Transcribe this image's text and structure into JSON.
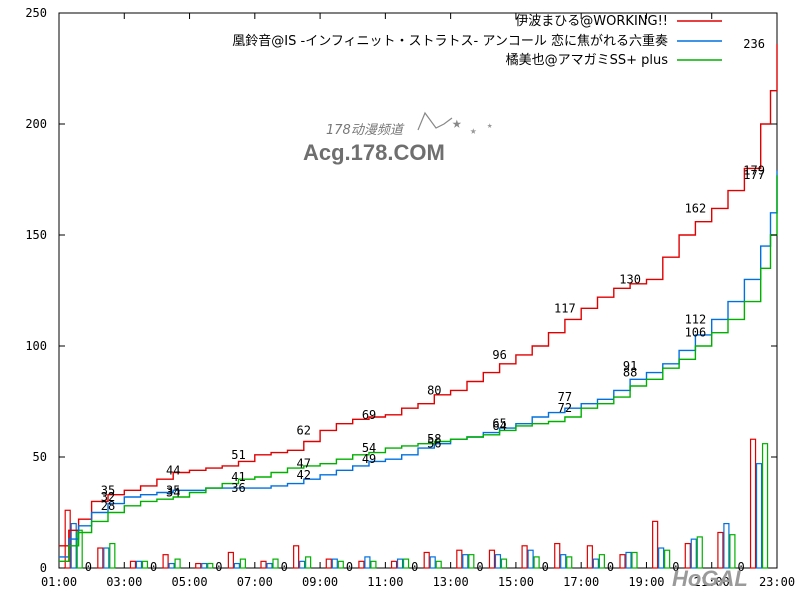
{
  "chart_data": {
    "type": "line",
    "x_ticks": [
      "01:00",
      "03:00",
      "05:00",
      "07:00",
      "09:00",
      "11:00",
      "13:00",
      "15:00",
      "17:00",
      "19:00",
      "21:00",
      "23:00"
    ],
    "y_ticks": [
      "0",
      "50",
      "100",
      "150",
      "200",
      "250"
    ],
    "xlim": [
      1,
      23
    ],
    "ylim": [
      0,
      250
    ],
    "legend_position": "top-right",
    "series": [
      {
        "name": "伊波まひる@WORKING!!",
        "color": "#e00000",
        "points": [
          [
            1,
            10
          ],
          [
            1.3,
            17
          ],
          [
            1.6,
            22
          ],
          [
            2,
            30
          ],
          [
            2.5,
            33
          ],
          [
            3,
            35
          ],
          [
            3.5,
            37
          ],
          [
            4,
            40
          ],
          [
            4.5,
            43
          ],
          [
            5,
            44
          ],
          [
            5.5,
            45
          ],
          [
            6,
            46
          ],
          [
            6.5,
            48
          ],
          [
            7,
            51
          ],
          [
            7.5,
            52
          ],
          [
            8,
            53
          ],
          [
            8.5,
            57
          ],
          [
            9,
            62
          ],
          [
            9.5,
            65
          ],
          [
            10,
            67
          ],
          [
            10.5,
            68
          ],
          [
            11,
            69
          ],
          [
            11.5,
            72
          ],
          [
            12,
            74
          ],
          [
            12.5,
            78
          ],
          [
            13,
            80
          ],
          [
            13.5,
            84
          ],
          [
            14,
            88
          ],
          [
            14.5,
            92
          ],
          [
            15,
            96
          ],
          [
            15.5,
            100
          ],
          [
            16,
            106
          ],
          [
            16.5,
            112
          ],
          [
            17,
            117
          ],
          [
            17.5,
            122
          ],
          [
            18,
            126
          ],
          [
            18.5,
            128
          ],
          [
            19,
            130
          ],
          [
            19.5,
            140
          ],
          [
            20,
            150
          ],
          [
            20.5,
            156
          ],
          [
            21,
            162
          ],
          [
            21.5,
            170
          ],
          [
            22,
            180
          ],
          [
            22.5,
            200
          ],
          [
            22.8,
            215
          ],
          [
            23,
            236
          ]
        ]
      },
      {
        "name": "凰鈴音@IS -インフィニット・ストラトス- アンコール 恋に焦がれる六重奏",
        "color": "#0070e0",
        "points": [
          [
            1,
            5
          ],
          [
            1.3,
            13
          ],
          [
            1.6,
            19
          ],
          [
            2,
            25
          ],
          [
            2.5,
            29
          ],
          [
            3,
            32
          ],
          [
            3.5,
            33
          ],
          [
            4,
            34
          ],
          [
            4.5,
            35
          ],
          [
            5,
            35
          ],
          [
            5.5,
            36
          ],
          [
            6,
            36
          ],
          [
            6.5,
            36
          ],
          [
            7,
            36
          ],
          [
            7.5,
            37
          ],
          [
            8,
            38
          ],
          [
            8.5,
            40
          ],
          [
            9,
            42
          ],
          [
            9.5,
            44
          ],
          [
            10,
            46
          ],
          [
            10.5,
            48
          ],
          [
            11,
            49
          ],
          [
            11.5,
            51
          ],
          [
            12,
            54
          ],
          [
            12.5,
            56
          ],
          [
            13,
            58
          ],
          [
            13.5,
            59
          ],
          [
            14,
            61
          ],
          [
            14.5,
            63
          ],
          [
            15,
            65
          ],
          [
            15.5,
            68
          ],
          [
            16,
            70
          ],
          [
            16.5,
            72
          ],
          [
            17,
            74
          ],
          [
            17.5,
            76
          ],
          [
            18,
            80
          ],
          [
            18.5,
            85
          ],
          [
            19,
            88
          ],
          [
            19.5,
            92
          ],
          [
            20,
            98
          ],
          [
            20.5,
            105
          ],
          [
            21,
            112
          ],
          [
            21.5,
            120
          ],
          [
            22,
            130
          ],
          [
            22.5,
            145
          ],
          [
            22.8,
            160
          ],
          [
            23,
            179
          ]
        ]
      },
      {
        "name": "橘美也@アマガミSS+ plus",
        "color": "#00b000",
        "points": [
          [
            1,
            3
          ],
          [
            1.3,
            10
          ],
          [
            1.6,
            16
          ],
          [
            2,
            21
          ],
          [
            2.5,
            25
          ],
          [
            3,
            28
          ],
          [
            3.5,
            30
          ],
          [
            4,
            31
          ],
          [
            4.5,
            32
          ],
          [
            5,
            34
          ],
          [
            5.5,
            36
          ],
          [
            6,
            38
          ],
          [
            6.5,
            40
          ],
          [
            7,
            41
          ],
          [
            7.5,
            43
          ],
          [
            8,
            45
          ],
          [
            8.5,
            46
          ],
          [
            9,
            47
          ],
          [
            9.5,
            49
          ],
          [
            10,
            51
          ],
          [
            10.5,
            52
          ],
          [
            11,
            54
          ],
          [
            11.5,
            55
          ],
          [
            12,
            56
          ],
          [
            12.5,
            57
          ],
          [
            13,
            58
          ],
          [
            13.5,
            59
          ],
          [
            14,
            60
          ],
          [
            14.5,
            62
          ],
          [
            15,
            64
          ],
          [
            15.5,
            65
          ],
          [
            16,
            66
          ],
          [
            16.5,
            68
          ],
          [
            17,
            72
          ],
          [
            17.5,
            74
          ],
          [
            18,
            77
          ],
          [
            18.5,
            82
          ],
          [
            19,
            85
          ],
          [
            19.5,
            90
          ],
          [
            20,
            94
          ],
          [
            20.5,
            100
          ],
          [
            21,
            106
          ],
          [
            21.5,
            112
          ],
          [
            22,
            120
          ],
          [
            22.5,
            135
          ],
          [
            22.8,
            150
          ],
          [
            23,
            177
          ]
        ]
      }
    ],
    "data_labels": [
      {
        "x": 2.5,
        "y": 35,
        "text": "35"
      },
      {
        "x": 2.5,
        "y": 32,
        "text": "32"
      },
      {
        "x": 2.5,
        "y": 28,
        "text": "28"
      },
      {
        "x": 4.5,
        "y": 44,
        "text": "44"
      },
      {
        "x": 4.5,
        "y": 35,
        "text": "35"
      },
      {
        "x": 4.5,
        "y": 34,
        "text": "34"
      },
      {
        "x": 6.5,
        "y": 51,
        "text": "51"
      },
      {
        "x": 6.5,
        "y": 41,
        "text": "41"
      },
      {
        "x": 6.5,
        "y": 36,
        "text": "36"
      },
      {
        "x": 8.5,
        "y": 62,
        "text": "62"
      },
      {
        "x": 8.5,
        "y": 47,
        "text": "47"
      },
      {
        "x": 8.5,
        "y": 42,
        "text": "42"
      },
      {
        "x": 10.5,
        "y": 69,
        "text": "69"
      },
      {
        "x": 10.5,
        "y": 54,
        "text": "54"
      },
      {
        "x": 10.5,
        "y": 49,
        "text": "49"
      },
      {
        "x": 12.5,
        "y": 80,
        "text": "80"
      },
      {
        "x": 12.5,
        "y": 58,
        "text": "58"
      },
      {
        "x": 12.5,
        "y": 56,
        "text": "56"
      },
      {
        "x": 14.5,
        "y": 96,
        "text": "96"
      },
      {
        "x": 14.5,
        "y": 65,
        "text": "65"
      },
      {
        "x": 14.5,
        "y": 64,
        "text": "64"
      },
      {
        "x": 16.5,
        "y": 117,
        "text": "117"
      },
      {
        "x": 16.5,
        "y": 77,
        "text": "77"
      },
      {
        "x": 16.5,
        "y": 72,
        "text": "72"
      },
      {
        "x": 18.5,
        "y": 130,
        "text": "130"
      },
      {
        "x": 18.5,
        "y": 91,
        "text": "91"
      },
      {
        "x": 18.5,
        "y": 88,
        "text": "88"
      },
      {
        "x": 20.5,
        "y": 162,
        "text": "162"
      },
      {
        "x": 20.5,
        "y": 112,
        "text": "112"
      },
      {
        "x": 20.5,
        "y": 106,
        "text": "106"
      },
      {
        "x": 22.3,
        "y": 236,
        "text": "236"
      },
      {
        "x": 22.3,
        "y": 179,
        "text": "179"
      },
      {
        "x": 22.3,
        "y": 177,
        "text": "177"
      }
    ],
    "bars": {
      "x": [
        1,
        2,
        3,
        4,
        5,
        6,
        7,
        8,
        9,
        10,
        11,
        12,
        13,
        14,
        15,
        16,
        17,
        18,
        19,
        20,
        21,
        22
      ],
      "series_values": [
        [
          26,
          9,
          3,
          6,
          2,
          7,
          3,
          10,
          4,
          3,
          3,
          7,
          8,
          8,
          10,
          11,
          10,
          6,
          21,
          11,
          16,
          58
        ],
        [
          20,
          9,
          3,
          2,
          2,
          2,
          2,
          3,
          4,
          5,
          4,
          5,
          6,
          6,
          8,
          6,
          4,
          7,
          9,
          13,
          20,
          47
        ],
        [
          17,
          11,
          3,
          4,
          2,
          4,
          4,
          5,
          3,
          3,
          4,
          3,
          6,
          4,
          5,
          5,
          6,
          7,
          8,
          14,
          15,
          56
        ]
      ]
    },
    "zero_labels": [
      "0",
      "0",
      "0",
      "0",
      "0",
      "0",
      "0",
      "0",
      "0",
      "0",
      "0",
      "0"
    ]
  },
  "watermark": {
    "line1": "178动漫频道",
    "line2": "Acg.178.COM",
    "corner": "HoGAL"
  }
}
